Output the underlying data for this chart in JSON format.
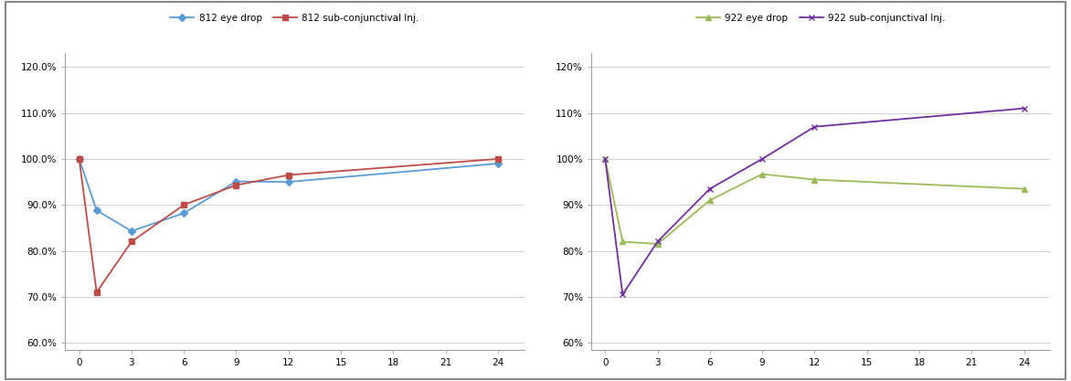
{
  "chart1": {
    "x": [
      0,
      1,
      3,
      6,
      9,
      12,
      24
    ],
    "eye_drop": [
      1.0,
      0.888,
      0.843,
      0.882,
      0.951,
      0.95,
      0.99
    ],
    "subconj": [
      1.0,
      0.71,
      0.82,
      0.9,
      0.943,
      0.965,
      1.0
    ],
    "eye_drop_label": "812 eye drop",
    "subconj_label": "812 sub-conjunctival Inj.",
    "eye_drop_color": "#5b9bd5",
    "subconj_color": "#be4b48",
    "yticks": [
      0.6,
      0.7,
      0.8,
      0.9,
      1.0,
      1.1,
      1.2
    ],
    "ytick_labels": [
      "60.0%",
      "70.0%",
      "80.0%",
      "90.0%",
      "100.0%",
      "110.0%",
      "120.0%"
    ],
    "xticks": [
      0,
      3,
      6,
      9,
      12,
      15,
      18,
      21,
      24
    ]
  },
  "chart2": {
    "x": [
      0,
      1,
      3,
      6,
      9,
      12,
      24
    ],
    "eye_drop": [
      1.0,
      0.82,
      0.815,
      0.91,
      0.967,
      0.955,
      0.935
    ],
    "subconj": [
      1.0,
      0.705,
      0.82,
      0.935,
      1.0,
      1.07,
      1.11
    ],
    "eye_drop_label": "922 eye drop",
    "subconj_label": "922 sub-conjunctival Inj.",
    "eye_drop_color": "#9bbb59",
    "subconj_color": "#7030a0",
    "yticks": [
      0.6,
      0.7,
      0.8,
      0.9,
      1.0,
      1.1,
      1.2
    ],
    "ytick_labels": [
      "60%",
      "70%",
      "80%",
      "90%",
      "100%",
      "110%",
      "120%"
    ],
    "xticks": [
      0,
      3,
      6,
      9,
      12,
      15,
      18,
      21,
      24
    ]
  },
  "bg_color": "#ffffff",
  "fig_width": 11.72,
  "fig_height": 4.17,
  "dpi": 100
}
